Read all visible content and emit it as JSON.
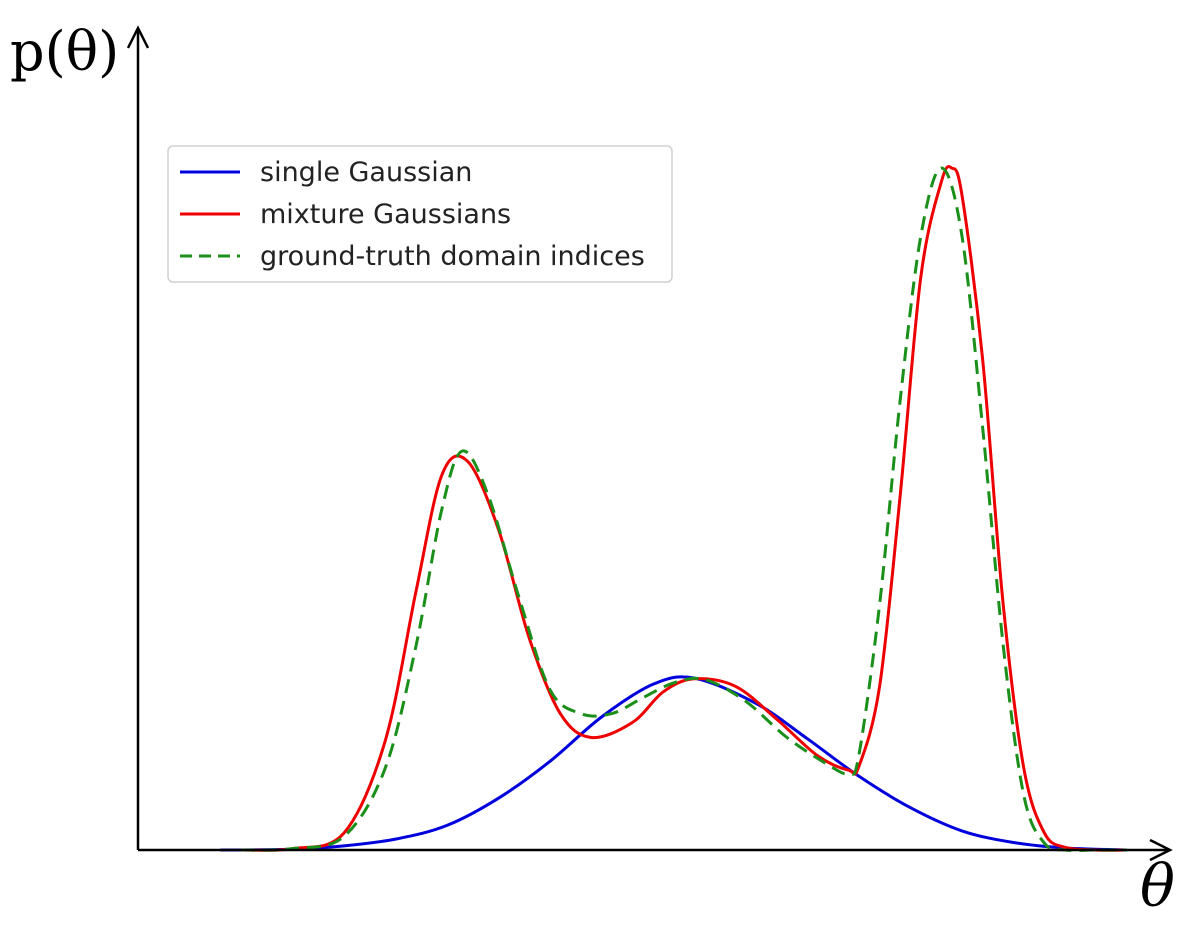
{
  "chart_data": {
    "type": "line",
    "title": "",
    "xlabel": "θ",
    "ylabel": "p(θ)",
    "x_range": [
      0,
      10
    ],
    "y_range": [
      0,
      1.0
    ],
    "grid": false,
    "ticks": false,
    "legend": {
      "placement": "top-left"
    },
    "series": [
      {
        "name": "single Gaussian",
        "color": "#0000dd",
        "style": "solid",
        "x": [
          0.8,
          1.5,
          2.0,
          2.5,
          3.0,
          3.5,
          4.0,
          4.5,
          5.0,
          5.4,
          6.0,
          6.5,
          7.0,
          7.5,
          8.0,
          8.5,
          9.0,
          9.6
        ],
        "y": [
          0.0,
          0.001,
          0.006,
          0.016,
          0.036,
          0.076,
          0.13,
          0.195,
          0.243,
          0.252,
          0.215,
          0.163,
          0.108,
          0.062,
          0.028,
          0.011,
          0.003,
          0.0
        ]
      },
      {
        "name": "mixture Gaussians",
        "color": "#ee0000",
        "style": "solid",
        "x": [
          1.0,
          1.5,
          2.0,
          2.4,
          2.7,
          2.95,
          3.2,
          3.5,
          3.8,
          4.1,
          4.4,
          4.8,
          5.1,
          5.4,
          5.8,
          6.2,
          6.6,
          6.9,
          7.0,
          7.2,
          7.4,
          7.6,
          7.8,
          7.9,
          8.0,
          8.2,
          8.4,
          8.6,
          8.8,
          9.0,
          9.3,
          9.6
        ],
        "y": [
          0.0,
          0.002,
          0.025,
          0.16,
          0.38,
          0.55,
          0.57,
          0.47,
          0.31,
          0.2,
          0.165,
          0.187,
          0.232,
          0.251,
          0.24,
          0.192,
          0.138,
          0.117,
          0.123,
          0.24,
          0.52,
          0.84,
          0.98,
          1.0,
          0.96,
          0.72,
          0.36,
          0.12,
          0.025,
          0.004,
          0.0,
          0.0
        ]
      },
      {
        "name": "ground-truth domain indices",
        "color": "#1a8f1a",
        "style": "dashed",
        "x": [
          1.0,
          1.5,
          2.0,
          2.4,
          2.7,
          2.95,
          3.15,
          3.4,
          3.7,
          4.0,
          4.3,
          4.6,
          4.9,
          5.2,
          5.5,
          5.9,
          6.3,
          6.7,
          6.9,
          7.0,
          7.2,
          7.4,
          7.6,
          7.8,
          8.0,
          8.2,
          8.4,
          8.6,
          8.8,
          9.0,
          9.3,
          9.6
        ],
        "y": [
          0.0,
          0.002,
          0.02,
          0.12,
          0.3,
          0.5,
          0.585,
          0.52,
          0.37,
          0.235,
          0.2,
          0.2,
          0.223,
          0.245,
          0.25,
          0.218,
          0.165,
          0.125,
          0.112,
          0.14,
          0.36,
          0.66,
          0.9,
          1.0,
          0.9,
          0.62,
          0.3,
          0.08,
          0.01,
          0.0,
          0.0,
          0.0
        ]
      }
    ]
  }
}
